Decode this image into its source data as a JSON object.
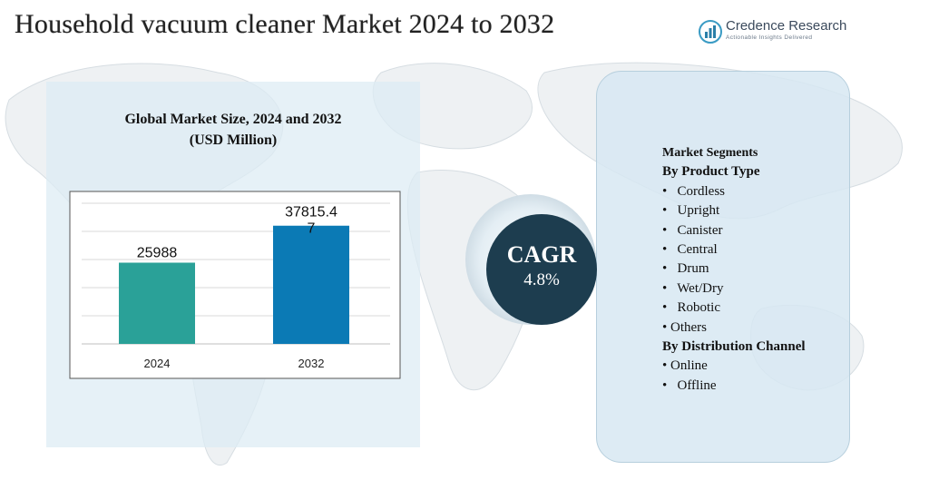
{
  "header": {
    "title": "Household vacuum cleaner Market 2024 to 2032"
  },
  "logo": {
    "name": "Credence Research",
    "tagline": "Actionable Insights Delivered",
    "icon": "bar-chart-logo-icon"
  },
  "chart_data": {
    "type": "bar",
    "title": "Global Market Size, 2024 and 2032",
    "subtitle": "(USD Million)",
    "categories": [
      "2024",
      "2032"
    ],
    "values": [
      25988,
      37815.47
    ],
    "value_labels": [
      "25988",
      "37815.4\n7"
    ],
    "colors": [
      "#2aa198",
      "#0b7ab5"
    ],
    "grid": true,
    "legend": "none"
  },
  "cagr": {
    "label": "CAGR",
    "value": "4.8%"
  },
  "segments": {
    "heading": "Market Segments",
    "groups": [
      {
        "title": "By Product Type",
        "items": [
          "Cordless",
          "Upright",
          "Canister",
          "Central",
          "Drum",
          "Wet/Dry",
          "Robotic",
          "Others"
        ]
      },
      {
        "title": "By Distribution Channel",
        "items": [
          "Online",
          "Offline"
        ]
      }
    ]
  }
}
